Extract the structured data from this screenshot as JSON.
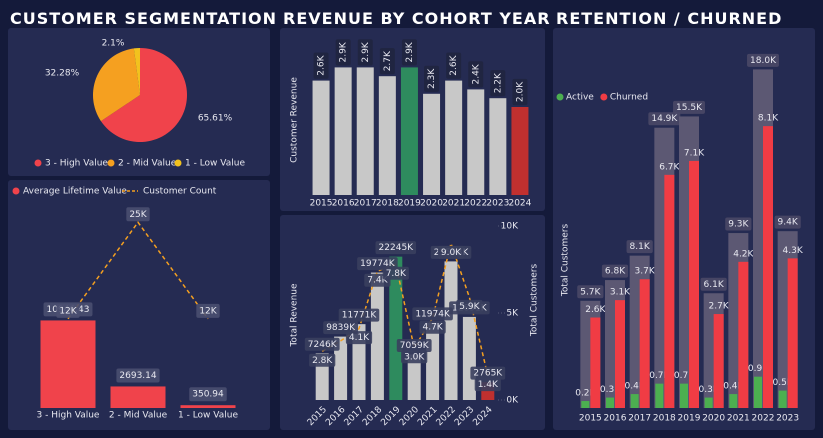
{
  "chart_data": [
    {
      "type": "pie",
      "title": "CUSTOMER SEGMENTATION",
      "categories": [
        "3 - High Value",
        "2 - Mid Value",
        "1 - Low Value"
      ],
      "values": [
        65.61,
        32.28,
        2.1
      ],
      "value_labels": [
        "65.61%",
        "32.28%",
        "2.1%"
      ],
      "colors": [
        "#f0434b",
        "#f5a020",
        "#f2c21e"
      ]
    },
    {
      "type": "combo",
      "categories": [
        "3 - High Value",
        "2 - Mid Value",
        "1 - Low Value"
      ],
      "series": [
        {
          "name": "Average Lifetime Value",
          "type": "bar",
          "color": "#f0434b",
          "values": [
            10946.43,
            2693.14,
            350.94
          ]
        },
        {
          "name": "Customer Count",
          "type": "line",
          "axis": "y2",
          "color": "#f5a020",
          "values": [
            12000,
            25000,
            12000
          ],
          "value_labels": [
            "12K",
            "25K",
            "12K"
          ]
        }
      ],
      "ylim": [
        0,
        26000
      ],
      "y2lim": [
        0,
        28000
      ]
    },
    {
      "type": "bar",
      "title": "REVENUE BY COHORT YEAR",
      "y_label": "Customer Revenue",
      "categories": [
        "2015",
        "2016",
        "2017",
        "2018",
        "2019",
        "2020",
        "2021",
        "2022",
        "2023",
        "2024"
      ],
      "values": [
        2600,
        2900,
        2900,
        2700,
        2900,
        2300,
        2600,
        2400,
        2200,
        2000
      ],
      "value_labels": [
        "2.6K",
        "2.9K",
        "2.9K",
        "2.7K",
        "2.9K",
        "2.3K",
        "2.6K",
        "2.4K",
        "2.2K",
        "2.0K"
      ],
      "colors": [
        "#c8c8c8",
        "#c8c8c8",
        "#c8c8c8",
        "#c8c8c8",
        "#2e8b5e",
        "#c8c8c8",
        "#c8c8c8",
        "#c8c8c8",
        "#c8c8c8",
        "#c0302f"
      ],
      "ylim": [
        0,
        3000
      ]
    },
    {
      "type": "combo",
      "y_label": "Total Revenue",
      "y2_label": "Total Customers",
      "categories": [
        "2015",
        "2016",
        "2017",
        "2018",
        "2019",
        "2020",
        "2021",
        "2022",
        "2023",
        "2024"
      ],
      "series": [
        {
          "type": "bar",
          "colors": [
            "#c8c8c8",
            "#c8c8c8",
            "#c8c8c8",
            "#c8c8c8",
            "#2e8b5e",
            "#c8c8c8",
            "#c8c8c8",
            "#c8c8c8",
            "#c8c8c8",
            "#c0302f"
          ],
          "values": [
            7246000,
            9839000,
            11771000,
            19774000,
            22245000,
            7059000,
            11974000,
            21508000,
            12891000,
            2765000
          ],
          "value_labels": [
            "7246K",
            "9839K",
            "11771K",
            "19774K",
            "22245K",
            "7059K",
            "11974K",
            "21508K",
            "12891K",
            "2765K"
          ]
        },
        {
          "type": "line",
          "axis": "y2",
          "color": "#f5a020",
          "values": [
            2800,
            3400,
            4100,
            7400,
            7800,
            3000,
            4700,
            9000,
            5900,
            1400
          ],
          "value_labels": [
            "2.8K",
            null,
            "4.1K",
            "7.4K",
            "7.8K",
            "3.0K",
            "4.7K",
            "9.0K",
            "5.9K",
            "1.4K"
          ]
        }
      ],
      "ylim": [
        0,
        27000000
      ],
      "y2lim": [
        0,
        10000
      ],
      "y2ticks": [
        {
          "value": 0,
          "label": "0K"
        },
        {
          "value": 5000,
          "label": "5K"
        },
        {
          "value": 10000,
          "label": "10K"
        }
      ]
    },
    {
      "type": "grouped_bar",
      "title": "RETENTION / CHURNED",
      "y_label": "Total Customers",
      "categories": [
        "2015",
        "2016",
        "2017",
        "2018",
        "2019",
        "2020",
        "2021",
        "2022",
        "2023"
      ],
      "totals": {
        "color": "#5c5873",
        "values": [
          5700,
          6800,
          8100,
          14900,
          15500,
          6100,
          9300,
          18000,
          9400
        ],
        "value_labels": [
          "5.7K",
          "6.8K",
          "8.1K",
          "14.9K",
          "15.5K",
          "6.1K",
          "9.3K",
          "18.0K",
          "9.4K"
        ]
      },
      "series": [
        {
          "name": "Active",
          "axis": "y2",
          "color": "#4caf50",
          "values": [
            200,
            300,
            400,
            700,
            700,
            300,
            400,
            900,
            500
          ],
          "value_labels": [
            "0.2K",
            "0.3K",
            "0.4K",
            "0.7K",
            "0.7K",
            "0.3K",
            "0.4K",
            "0.9K",
            "0.5K"
          ]
        },
        {
          "name": "Churned",
          "axis": "y2",
          "color": "#f03c44",
          "values": [
            2600,
            3100,
            3700,
            6700,
            7100,
            2700,
            4200,
            8100,
            4300
          ],
          "value_labels": [
            "2.6K",
            "3.1K",
            "3.7K",
            "6.7K",
            "7.1K",
            "2.7K",
            "4.2K",
            "8.1K",
            "4.3K"
          ]
        }
      ],
      "ylim": [
        0,
        18500
      ],
      "y2lim": [
        0,
        10000
      ]
    }
  ]
}
